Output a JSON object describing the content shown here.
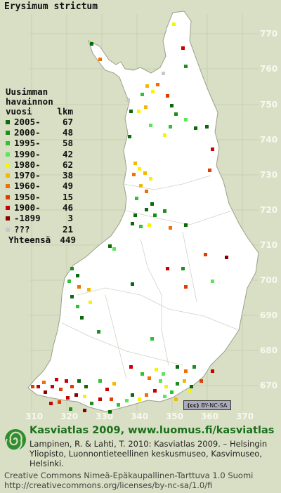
{
  "title": "Erysimum strictum",
  "legend": {
    "heading_line1": "Uusimman",
    "heading_line2": "havainnon",
    "heading_line3": "vuosi",
    "count_header": "lkm",
    "items": [
      {
        "label": "2005-",
        "count": "67",
        "color": "#0b6a0b"
      },
      {
        "label": "2000-",
        "count": "48",
        "color": "#1e8f1e"
      },
      {
        "label": "1995-",
        "count": "58",
        "color": "#31c131"
      },
      {
        "label": "1990-",
        "count": "42",
        "color": "#5ae65a"
      },
      {
        "label": "1980-",
        "count": "62",
        "color": "#f5f500"
      },
      {
        "label": "1970-",
        "count": "38",
        "color": "#f5b800"
      },
      {
        "label": "1960-",
        "count": "49",
        "color": "#f07000"
      },
      {
        "label": "1950-",
        "count": "15",
        "color": "#e23c00"
      },
      {
        "label": "1900-",
        "count": "46",
        "color": "#cc0000"
      },
      {
        "label": "-1899",
        "count": "3",
        "color": "#8c0000"
      },
      {
        "label": "???",
        "count": "21",
        "color": "#c8c8c8"
      }
    ],
    "total_label": "Yhteensä",
    "total_count": "449"
  },
  "grid_y_labels": [
    "770",
    "760",
    "750",
    "740",
    "730",
    "720",
    "710",
    "700",
    "690",
    "680",
    "670"
  ],
  "grid_x_labels": [
    "310",
    "320",
    "330",
    "340",
    "350",
    "360",
    "370"
  ],
  "cc_badge": "BY-NC-SA",
  "footer": {
    "brand": "Kasviatlas 2009, www.luomus.fi/kasviatlas",
    "citation": "Lampinen, R. & Lahti, T. 2010: Kasviatlas 2009. – Helsingin Yliopisto, Luonnontieteellinen keskusmuseo, Kasvimuseo, Helsinki.",
    "license_line1": "Creative Commons Nimeä-Epäkaupallinen-Tarttuva 1.0 Suomi",
    "license_line2": "http://creativecommons.org/licenses/by-nc-sa/1.0/fi"
  }
}
